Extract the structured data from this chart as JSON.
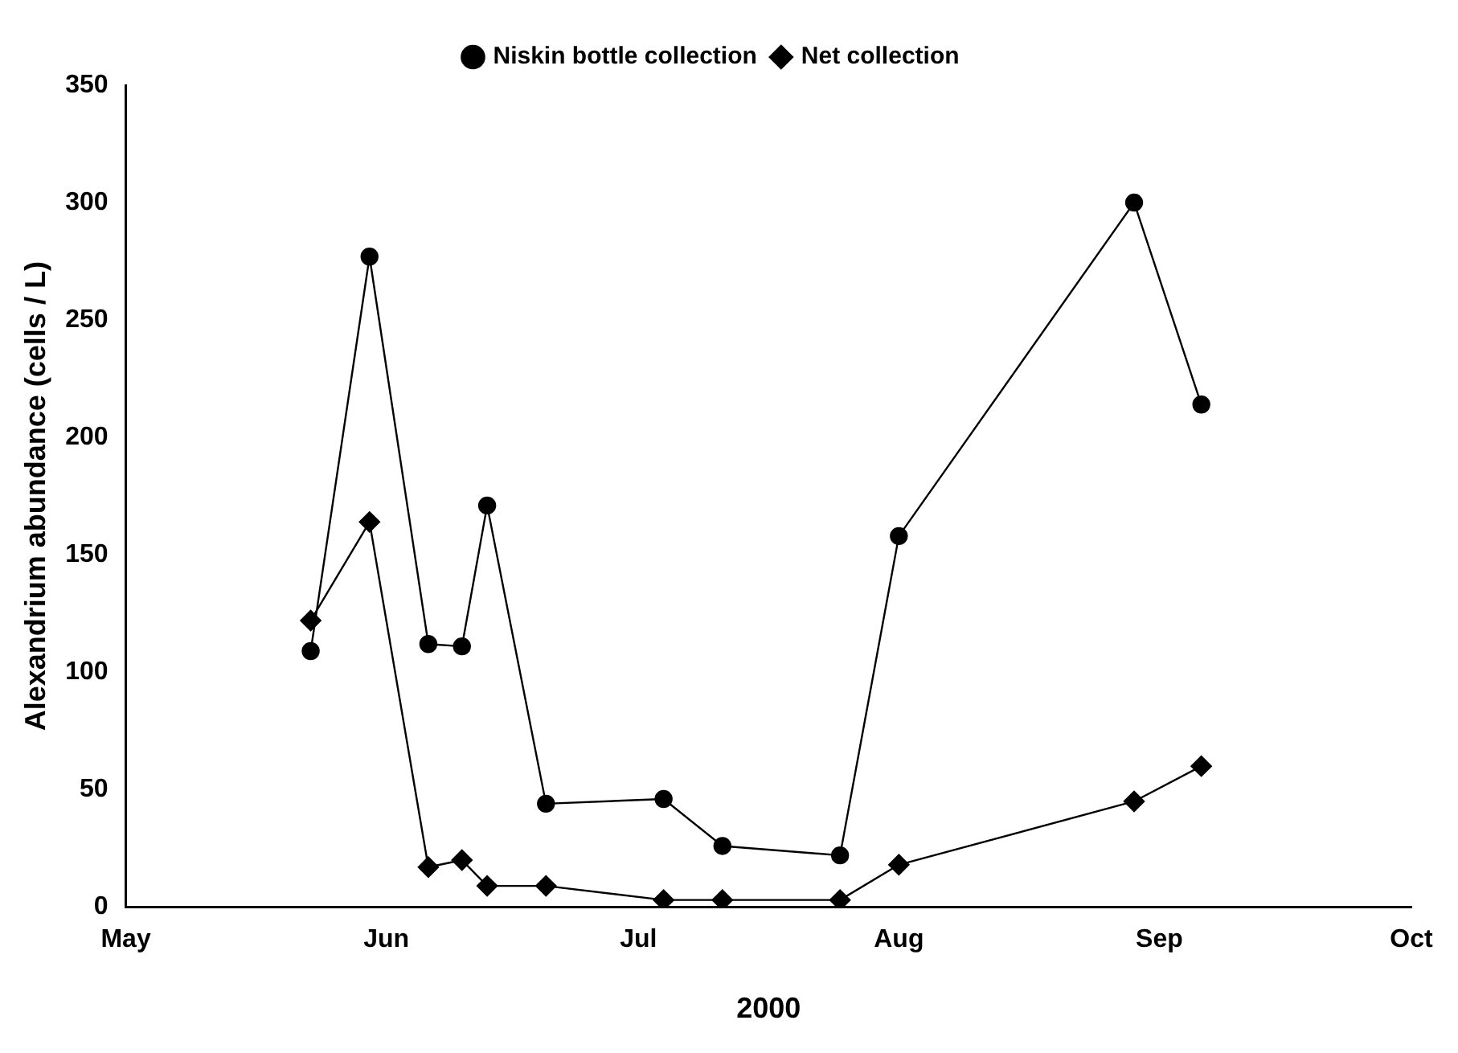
{
  "chart_data": {
    "type": "line",
    "xlabel": "2000",
    "ylabel": "Alexandrium abundance (cells / L)",
    "x": [
      "2000-05-23",
      "2000-05-30",
      "2000-06-06",
      "2000-06-10",
      "2000-06-13",
      "2000-06-20",
      "2000-07-04",
      "2000-07-11",
      "2000-07-25",
      "2000-08-01",
      "2000-08-29",
      "2000-09-06"
    ],
    "series": [
      {
        "name": "Niskin bottle collection",
        "color": "#000000",
        "marker": "circle",
        "values": [
          109,
          277,
          112,
          111,
          171,
          44,
          46,
          26,
          22,
          158,
          300,
          214
        ]
      },
      {
        "name": "Net collection",
        "color": "#000000",
        "marker": "diamond",
        "values": [
          122,
          164,
          17,
          20,
          9,
          9,
          3,
          3,
          3,
          18,
          45,
          60
        ]
      }
    ],
    "xlim": [
      "2000-05-01",
      "2000-10-01"
    ],
    "xticks": [
      {
        "value": "2000-05-01",
        "label": "May"
      },
      {
        "value": "2000-06-01",
        "label": "Jun"
      },
      {
        "value": "2000-07-01",
        "label": "Jul"
      },
      {
        "value": "2000-08-01",
        "label": "Aug"
      },
      {
        "value": "2000-09-01",
        "label": "Sep"
      },
      {
        "value": "2000-10-01",
        "label": "Oct"
      }
    ],
    "ylim": [
      0,
      350
    ],
    "yticks": [
      0,
      50,
      100,
      150,
      200,
      250,
      300,
      350
    ],
    "grid": false,
    "legend": "top",
    "line_style": "solid"
  }
}
